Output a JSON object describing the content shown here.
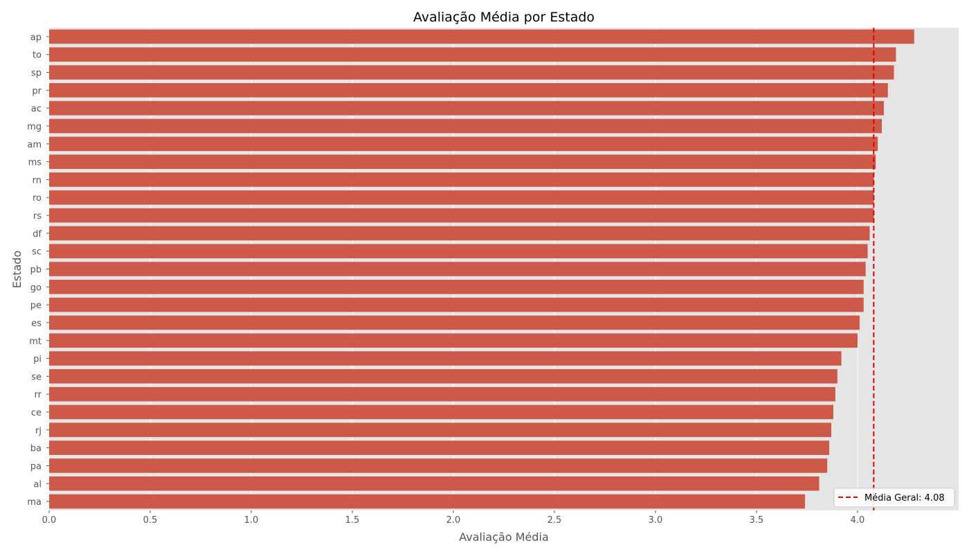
{
  "chart_data": {
    "type": "bar",
    "orientation": "horizontal",
    "title": "Avaliação Média por Estado",
    "xlabel": "Avaliação Média",
    "ylabel": "Estado",
    "xlim": [
      0,
      4.5
    ],
    "xticks": [
      0.0,
      0.5,
      1.0,
      1.5,
      2.0,
      2.5,
      3.0,
      3.5,
      4.0
    ],
    "xtick_labels": [
      "0.0",
      "0.5",
      "1.0",
      "1.5",
      "2.0",
      "2.5",
      "3.0",
      "3.5",
      "4.0"
    ],
    "grid": true,
    "bar_color": "#cd5948",
    "background_color": "#e5e5e5",
    "categories": [
      "ap",
      "to",
      "sp",
      "pr",
      "ac",
      "mg",
      "am",
      "ms",
      "rn",
      "ro",
      "rs",
      "df",
      "sc",
      "pb",
      "go",
      "pe",
      "es",
      "mt",
      "pi",
      "se",
      "rr",
      "ce",
      "rj",
      "ba",
      "pa",
      "al",
      "ma"
    ],
    "values": [
      4.28,
      4.19,
      4.18,
      4.15,
      4.13,
      4.12,
      4.1,
      4.09,
      4.08,
      4.08,
      4.08,
      4.06,
      4.05,
      4.04,
      4.03,
      4.03,
      4.01,
      4.0,
      3.92,
      3.9,
      3.89,
      3.88,
      3.87,
      3.86,
      3.85,
      3.81,
      3.74
    ],
    "reference_line": {
      "value": 4.08,
      "color": "#e00000",
      "style": "dashed"
    },
    "legend": {
      "position": "bottom-right",
      "label": "Média Geral: 4.08"
    }
  }
}
